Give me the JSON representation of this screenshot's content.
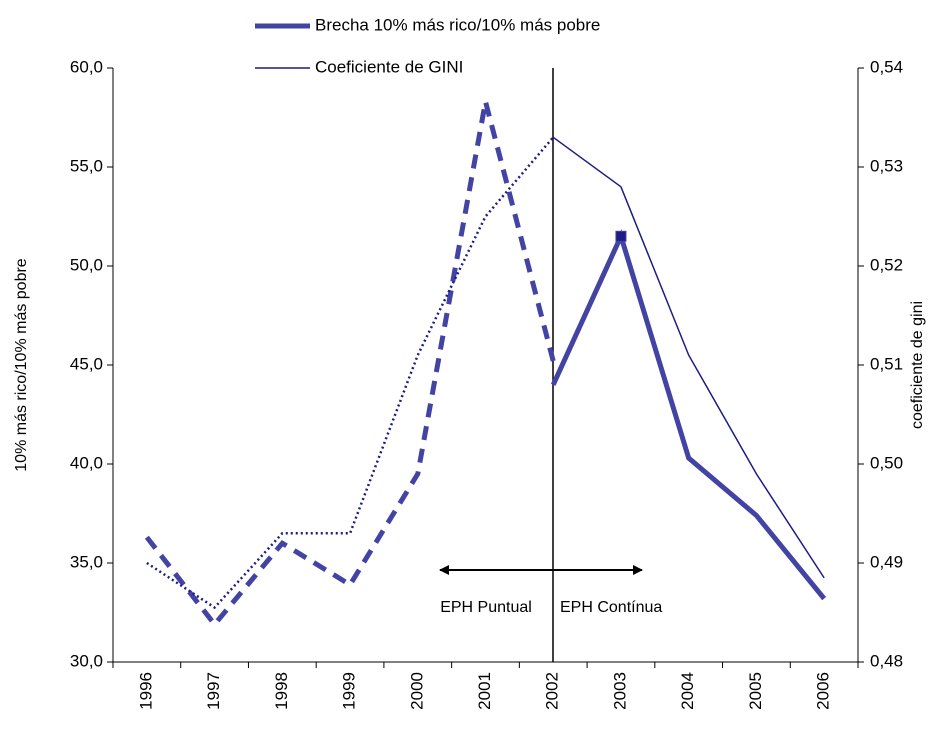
{
  "chart_data": {
    "type": "line",
    "categories": [
      "1996",
      "1997",
      "1998",
      "1999",
      "2000",
      "2001",
      "2002",
      "2003",
      "2004",
      "2005",
      "2006"
    ],
    "series": [
      {
        "name": "Brecha 10% más rico/10% más pobre",
        "color": "#4343a3",
        "style": "solid",
        "width": 5,
        "marker": [
          7
        ],
        "values": [
          null,
          null,
          null,
          null,
          null,
          null,
          44.0,
          51.5,
          40.3,
          37.4,
          33.2
        ]
      },
      {
        "color": "#4343a3",
        "style": "dashed",
        "width": 5,
        "values": [
          36.3,
          31.9,
          36.0,
          33.9,
          39.5,
          58.3,
          45.2,
          null,
          null,
          null,
          null
        ]
      },
      {
        "name": "Coeficiente de GINI",
        "color": "#1c1c84",
        "style": "solid",
        "width": 1.5,
        "axis": "y2",
        "values": [
          null,
          null,
          null,
          null,
          null,
          null,
          0.533,
          0.528,
          0.511,
          0.499,
          0.4885
        ]
      },
      {
        "color": "#1c1c84",
        "style": "dotted",
        "width": 2.5,
        "axis": "y2",
        "values": [
          0.49,
          0.4855,
          0.493,
          0.493,
          0.511,
          0.525,
          0.533,
          null,
          null,
          null,
          null
        ]
      }
    ],
    "ylabel": "10% más rico/10% más pobre",
    "y2label": "coeficiente de gini",
    "ylim": [
      30,
      60
    ],
    "yticks": [
      {
        "value": 30,
        "label": "30,0"
      },
      {
        "value": 35,
        "label": "35,0"
      },
      {
        "value": 40,
        "label": "40,0"
      },
      {
        "value": 45,
        "label": "45,0"
      },
      {
        "value": 50,
        "label": "50,0"
      },
      {
        "value": 55,
        "label": "55,0"
      },
      {
        "value": 60,
        "label": "60,0"
      }
    ],
    "y2lim": [
      0.48,
      0.54
    ],
    "y2ticks": [
      {
        "value": 0.48,
        "label": "0,48"
      },
      {
        "value": 0.49,
        "label": "0,49"
      },
      {
        "value": 0.5,
        "label": "0,50"
      },
      {
        "value": 0.51,
        "label": "0,51"
      },
      {
        "value": 0.52,
        "label": "0,52"
      },
      {
        "value": 0.53,
        "label": "0,53"
      },
      {
        "value": 0.54,
        "label": "0,54"
      }
    ],
    "annotations": [
      "EPH Puntual",
      "EPH Contínua"
    ],
    "grid": false,
    "legend": "top"
  }
}
